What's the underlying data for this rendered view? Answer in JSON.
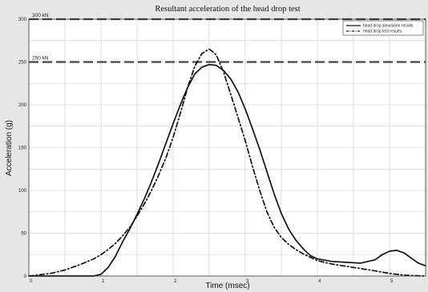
{
  "chart_data": {
    "type": "line",
    "title": "Resultant acceleration of the head drop test",
    "xlabel": "Time (msec)",
    "ylabel": "Acceleration (g)",
    "xlim": [
      0,
      5.5
    ],
    "ylim": [
      0,
      300
    ],
    "x_ticks": [
      0,
      1,
      2,
      3,
      4,
      5
    ],
    "x_tick_labels": [
      "0",
      "1",
      "2",
      "3",
      "4",
      "5"
    ],
    "y_ticks": [
      0,
      50,
      100,
      150,
      200,
      250,
      300
    ],
    "y_tick_labels": [
      "0",
      "50",
      "100",
      "150",
      "200",
      "250",
      "300"
    ],
    "grid": true,
    "legend_position": "top-right",
    "reference_lines": [
      {
        "label": "300 kN",
        "value": 300
      },
      {
        "label": "250 kN",
        "value": 250
      }
    ],
    "series": [
      {
        "name": "head drop simulation results",
        "style": "solid",
        "color": "#111111",
        "x": [
          0,
          0.5,
          0.9,
          1.0,
          1.1,
          1.2,
          1.3,
          1.4,
          1.5,
          1.6,
          1.7,
          1.8,
          1.9,
          2.0,
          2.1,
          2.2,
          2.3,
          2.4,
          2.5,
          2.6,
          2.7,
          2.8,
          2.9,
          3.0,
          3.1,
          3.2,
          3.3,
          3.4,
          3.5,
          3.6,
          3.7,
          3.8,
          3.9,
          4.0,
          4.2,
          4.4,
          4.6,
          4.8,
          4.9,
          5.0,
          5.1,
          5.2,
          5.3,
          5.4,
          5.5
        ],
        "y": [
          0,
          0,
          0,
          2,
          10,
          23,
          40,
          55,
          72,
          90,
          110,
          132,
          155,
          178,
          200,
          220,
          236,
          244,
          247,
          246,
          240,
          230,
          215,
          195,
          172,
          148,
          122,
          96,
          73,
          55,
          42,
          32,
          24,
          20,
          17,
          16,
          15,
          19,
          25,
          29,
          30,
          27,
          21,
          15,
          12
        ]
      },
      {
        "name": "head drop test results",
        "style": "dash-dot",
        "color": "#111111",
        "x": [
          0,
          0.3,
          0.5,
          0.7,
          0.9,
          1.0,
          1.1,
          1.2,
          1.3,
          1.4,
          1.5,
          1.6,
          1.7,
          1.8,
          1.9,
          2.0,
          2.1,
          2.2,
          2.3,
          2.4,
          2.5,
          2.55,
          2.6,
          2.7,
          2.8,
          2.9,
          3.0,
          3.1,
          3.2,
          3.3,
          3.4,
          3.5,
          3.6,
          3.7,
          3.8,
          3.9,
          4.0,
          4.2,
          4.5,
          4.8,
          5.0,
          5.2,
          5.5
        ],
        "y": [
          0,
          3,
          7,
          13,
          20,
          25,
          31,
          38,
          47,
          57,
          70,
          84,
          100,
          118,
          138,
          162,
          190,
          220,
          245,
          260,
          265,
          262,
          258,
          238,
          212,
          185,
          158,
          128,
          100,
          75,
          57,
          45,
          37,
          31,
          26,
          22,
          18,
          14,
          10,
          6,
          3,
          1,
          0
        ]
      }
    ]
  }
}
